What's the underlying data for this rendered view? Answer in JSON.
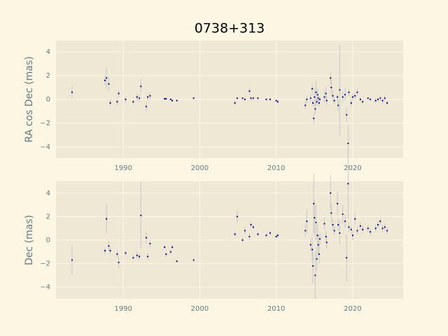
{
  "chart_data": [
    {
      "type": "scatter",
      "title": "0738+313",
      "ylabel": "RA cos Dec (mas)",
      "color": "#00008b",
      "error_color": "#c8c8c8",
      "grid": true,
      "xlim": [
        1981.2,
        2026.6
      ],
      "ylim": [
        -4.95,
        4.95
      ],
      "xticks": [
        1990,
        2000,
        2010,
        2020
      ],
      "yticks": [
        {
          "value": -4,
          "label": "−4"
        },
        {
          "value": -2,
          "label": "−2"
        },
        0,
        2,
        4
      ],
      "x": [
        1983.3,
        1987.6,
        1987.8,
        1988.1,
        1988.3,
        1989.2,
        1989.4,
        1990.3,
        1991.3,
        1991.8,
        1992.1,
        1992.3,
        1993.0,
        1993.2,
        1993.5,
        1995.4,
        1995.6,
        1996.2,
        1996.4,
        1997.0,
        1999.2,
        2004.6,
        2004.9,
        2005.6,
        2005.9,
        2006.5,
        2006.7,
        2007.0,
        2007.6,
        2008.7,
        2009.2,
        2010.0,
        2010.2,
        2013.8,
        2014.0,
        2014.5,
        2014.7,
        2014.8,
        2014.9,
        2015.0,
        2015.1,
        2015.2,
        2015.3,
        2015.4,
        2015.5,
        2015.6,
        2015.7,
        2016.3,
        2016.5,
        2016.6,
        2017.1,
        2017.2,
        2017.4,
        2017.6,
        2018.0,
        2018.1,
        2018.3,
        2018.7,
        2019.0,
        2019.2,
        2019.4,
        2019.5,
        2019.8,
        2020.0,
        2020.3,
        2020.6,
        2021.0,
        2021.3,
        2022.0,
        2022.3,
        2023.0,
        2023.3,
        2023.6,
        2023.9,
        2024.2,
        2024.5
      ],
      "values": [
        0.6,
        1.6,
        1.8,
        1.3,
        -0.3,
        -0.2,
        0.5,
        0.0,
        -0.2,
        0.2,
        0.1,
        1.1,
        -0.6,
        0.2,
        0.3,
        0.05,
        0.05,
        0.0,
        -0.1,
        -0.1,
        0.1,
        -0.3,
        0.1,
        0.1,
        0.0,
        0.7,
        0.1,
        0.1,
        0.1,
        0.0,
        0.0,
        -0.1,
        -0.2,
        -0.5,
        0.0,
        0.1,
        0.9,
        -0.3,
        -1.6,
        0.2,
        -0.8,
        0.6,
        -0.2,
        0.4,
        0.1,
        -0.3,
        0.0,
        0.2,
        0.5,
        -0.1,
        1.8,
        1.0,
        0.3,
        -0.1,
        0.2,
        -0.5,
        0.8,
        0.2,
        0.4,
        -1.3,
        -3.7,
        0.6,
        -0.3,
        0.2,
        0.3,
        0.6,
        0.0,
        -0.2,
        0.1,
        0.0,
        -0.1,
        0.0,
        0.1,
        -0.1,
        0.1,
        -0.3
      ],
      "errors": [
        0.5,
        0.4,
        0.9,
        0.6,
        0.3,
        0.3,
        0.3,
        0.2,
        0.2,
        0.3,
        0.3,
        0.6,
        0.4,
        0.3,
        0.3,
        0.1,
        0.1,
        0.1,
        0.1,
        0.1,
        0.1,
        0.2,
        0.1,
        0.1,
        0.1,
        0.3,
        0.2,
        0.1,
        0.1,
        0.1,
        0.1,
        0.1,
        0.1,
        0.3,
        0.3,
        0.3,
        0.5,
        0.3,
        0.5,
        0.8,
        0.5,
        1.0,
        0.3,
        0.5,
        0.3,
        0.3,
        0.2,
        0.5,
        0.6,
        0.4,
        0.5,
        0.7,
        0.5,
        0.3,
        0.3,
        0.5,
        3.8,
        0.5,
        0.5,
        0.6,
        1.5,
        0.3,
        0.3,
        0.3,
        0.3,
        0.3,
        0.2,
        0.2,
        0.1,
        0.1,
        0.2,
        0.2,
        0.2,
        0.2,
        0.2,
        0.2
      ]
    },
    {
      "type": "scatter",
      "ylabel": "Dec (mas)",
      "color": "#00008b",
      "error_color": "#c8c8c8",
      "grid": true,
      "xlim": [
        1981.2,
        2026.6
      ],
      "ylim": [
        -5,
        5
      ],
      "xticks": [
        1990,
        2000,
        2010,
        2020
      ],
      "yticks": [
        {
          "value": -4,
          "label": "−4"
        },
        {
          "value": -2,
          "label": "−2"
        },
        0,
        2,
        4
      ],
      "x": [
        1983.3,
        1987.6,
        1987.8,
        1988.1,
        1988.3,
        1989.2,
        1989.4,
        1990.3,
        1991.3,
        1991.8,
        1992.1,
        1992.3,
        1993.0,
        1993.2,
        1993.5,
        1995.4,
        1995.6,
        1996.2,
        1996.4,
        1997.0,
        1999.2,
        2004.6,
        2004.9,
        2005.6,
        2005.9,
        2006.5,
        2006.7,
        2007.0,
        2007.6,
        2008.7,
        2009.2,
        2010.0,
        2010.2,
        2013.8,
        2014.0,
        2014.5,
        2014.7,
        2014.8,
        2014.9,
        2015.0,
        2015.1,
        2015.2,
        2015.3,
        2015.4,
        2015.5,
        2015.6,
        2015.7,
        2016.3,
        2016.5,
        2016.6,
        2017.1,
        2017.2,
        2017.4,
        2017.6,
        2018.0,
        2018.1,
        2018.3,
        2018.7,
        2019.0,
        2019.2,
        2019.4,
        2019.5,
        2019.8,
        2020.0,
        2020.3,
        2020.6,
        2021.0,
        2021.3,
        2022.0,
        2022.3,
        2023.0,
        2023.3,
        2023.6,
        2023.9,
        2024.2,
        2024.5
      ],
      "values": [
        -1.7,
        -0.9,
        1.8,
        -0.5,
        -0.9,
        -1.2,
        -1.9,
        -1.1,
        -1.5,
        -1.3,
        -1.4,
        2.1,
        0.2,
        -1.4,
        -0.3,
        -0.6,
        -1.2,
        -1.0,
        -0.6,
        -1.8,
        -1.7,
        0.5,
        2.0,
        0.0,
        0.8,
        0.3,
        1.3,
        1.1,
        0.5,
        0.4,
        0.6,
        0.3,
        0.4,
        0.8,
        1.6,
        -0.4,
        -0.8,
        -2.2,
        3.1,
        1.9,
        -3.0,
        1.5,
        -1.6,
        0.4,
        -0.4,
        -1.2,
        0.1,
        1.4,
        0.3,
        -0.2,
        4.0,
        2.3,
        1.3,
        0.8,
        3.1,
        1.3,
        0.6,
        2.2,
        1.6,
        -1.5,
        4.8,
        1.1,
        0.9,
        0.4,
        1.8,
        0.8,
        1.2,
        0.9,
        1.0,
        0.7,
        1.0,
        1.3,
        1.6,
        1.0,
        1.1,
        0.8
      ],
      "errors": [
        1.2,
        0.3,
        1.2,
        0.4,
        0.3,
        0.3,
        0.5,
        0.2,
        0.2,
        0.3,
        0.3,
        2.8,
        0.5,
        0.3,
        0.3,
        0.2,
        0.2,
        0.2,
        0.2,
        0.1,
        0.1,
        0.2,
        0.5,
        0.2,
        0.3,
        0.3,
        0.3,
        0.2,
        0.2,
        0.2,
        0.2,
        0.2,
        0.2,
        0.5,
        1.0,
        0.5,
        1.0,
        1.5,
        2.5,
        1.5,
        2.0,
        1.5,
        1.0,
        1.0,
        0.8,
        0.8,
        0.5,
        0.5,
        0.5,
        0.5,
        1.5,
        0.8,
        0.5,
        0.4,
        1.0,
        0.5,
        1.0,
        0.8,
        0.6,
        2.0,
        3.0,
        0.4,
        0.3,
        0.4,
        0.5,
        0.3,
        0.3,
        0.3,
        0.3,
        0.3,
        0.3,
        0.3,
        0.3,
        0.3,
        0.3,
        0.3
      ]
    }
  ]
}
